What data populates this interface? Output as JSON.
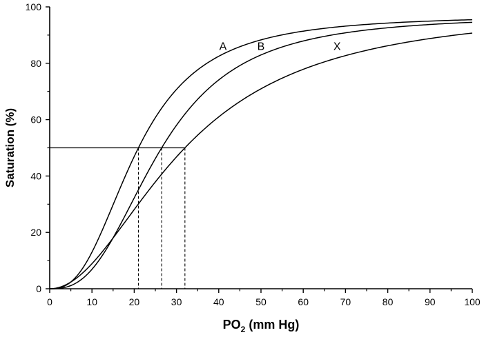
{
  "chart_data": {
    "type": "line",
    "title": "",
    "xlabel": "PO",
    "xlabel_sub": "2",
    "xlabel_suffix": " (mm Hg)",
    "ylabel": "Saturation (%)",
    "xlim": [
      0,
      100
    ],
    "ylim": [
      0,
      100
    ],
    "xticks": [
      0,
      10,
      20,
      30,
      40,
      50,
      60,
      70,
      80,
      90,
      100
    ],
    "yticks": [
      0,
      20,
      40,
      60,
      80,
      100
    ],
    "grid": false,
    "series": [
      {
        "name": "A",
        "p50": 21,
        "hill_n": 2.6,
        "max": 97,
        "label_at": [
          41,
          85
        ]
      },
      {
        "name": "B",
        "p50": 26.5,
        "hill_n": 2.7,
        "max": 97,
        "label_at": [
          50,
          85
        ]
      },
      {
        "name": "X",
        "p50": 32,
        "hill_n": 2.0,
        "max": 100,
        "label_at": [
          68,
          85
        ]
      }
    ],
    "reference_line": {
      "y": 50,
      "x_start": 0,
      "x_end": 32,
      "drops": [
        21,
        26.5,
        32
      ]
    }
  }
}
